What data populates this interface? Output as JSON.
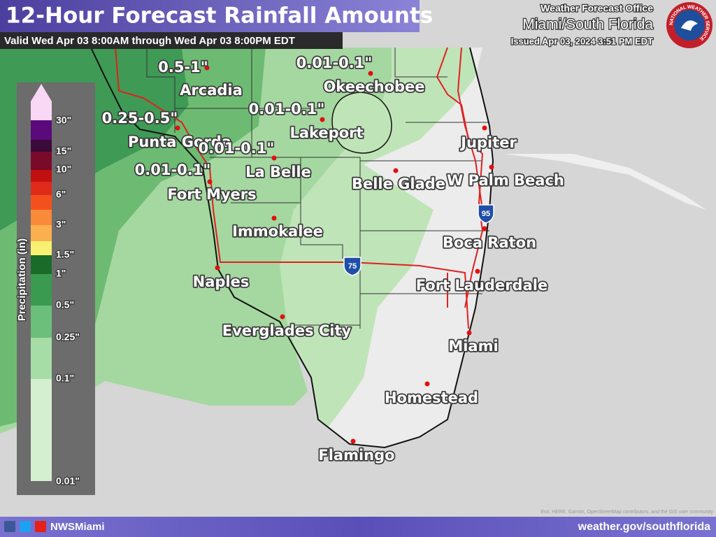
{
  "header": {
    "title": "12-Hour Forecast Rainfall Amounts",
    "valid": "Valid Wed Apr 03 8:00AM through Wed Apr 03 8:00PM EDT",
    "office": "Weather Forecast Office",
    "office_name": "Miami/South Florida",
    "issued": "Issued Apr 03, 2024 3:51 PM EDT",
    "logo": "NATIONAL WEATHER SERVICE"
  },
  "legend": {
    "title": "Precipitation (in)",
    "labels": [
      "30\"",
      "15\"",
      "10\"",
      "6\"",
      "3\"",
      "1.5\"",
      "1\"",
      "0.5\"",
      "0.25\"",
      "0.1\"",
      "0.01\""
    ]
  },
  "cities": [
    "Arcadia",
    "Okeechobee",
    "Lakeport",
    "Punta Gorda",
    "La Belle",
    "Jupiter",
    "Belle Glade",
    "W Palm Beach",
    "Fort Myers",
    "Immokalee",
    "Boca Raton",
    "Naples",
    "Fort Lauderdale",
    "Everglades City",
    "Miami",
    "Homestead",
    "Flamingo"
  ],
  "amounts": [
    "0.5-1\"",
    "0.01-0.1\"",
    "0.25-0.5\"",
    "0.01-0.1\"",
    "0.01-0.1\"",
    "0.01-0.1\""
  ],
  "highways": [
    "95",
    "75"
  ],
  "footer": {
    "social": "NWSMiami",
    "url": "weather.gov/southflorida",
    "attribution": "Esri, HERE, Garmin, OpenStreetMap contributors, and the GIS user community"
  }
}
